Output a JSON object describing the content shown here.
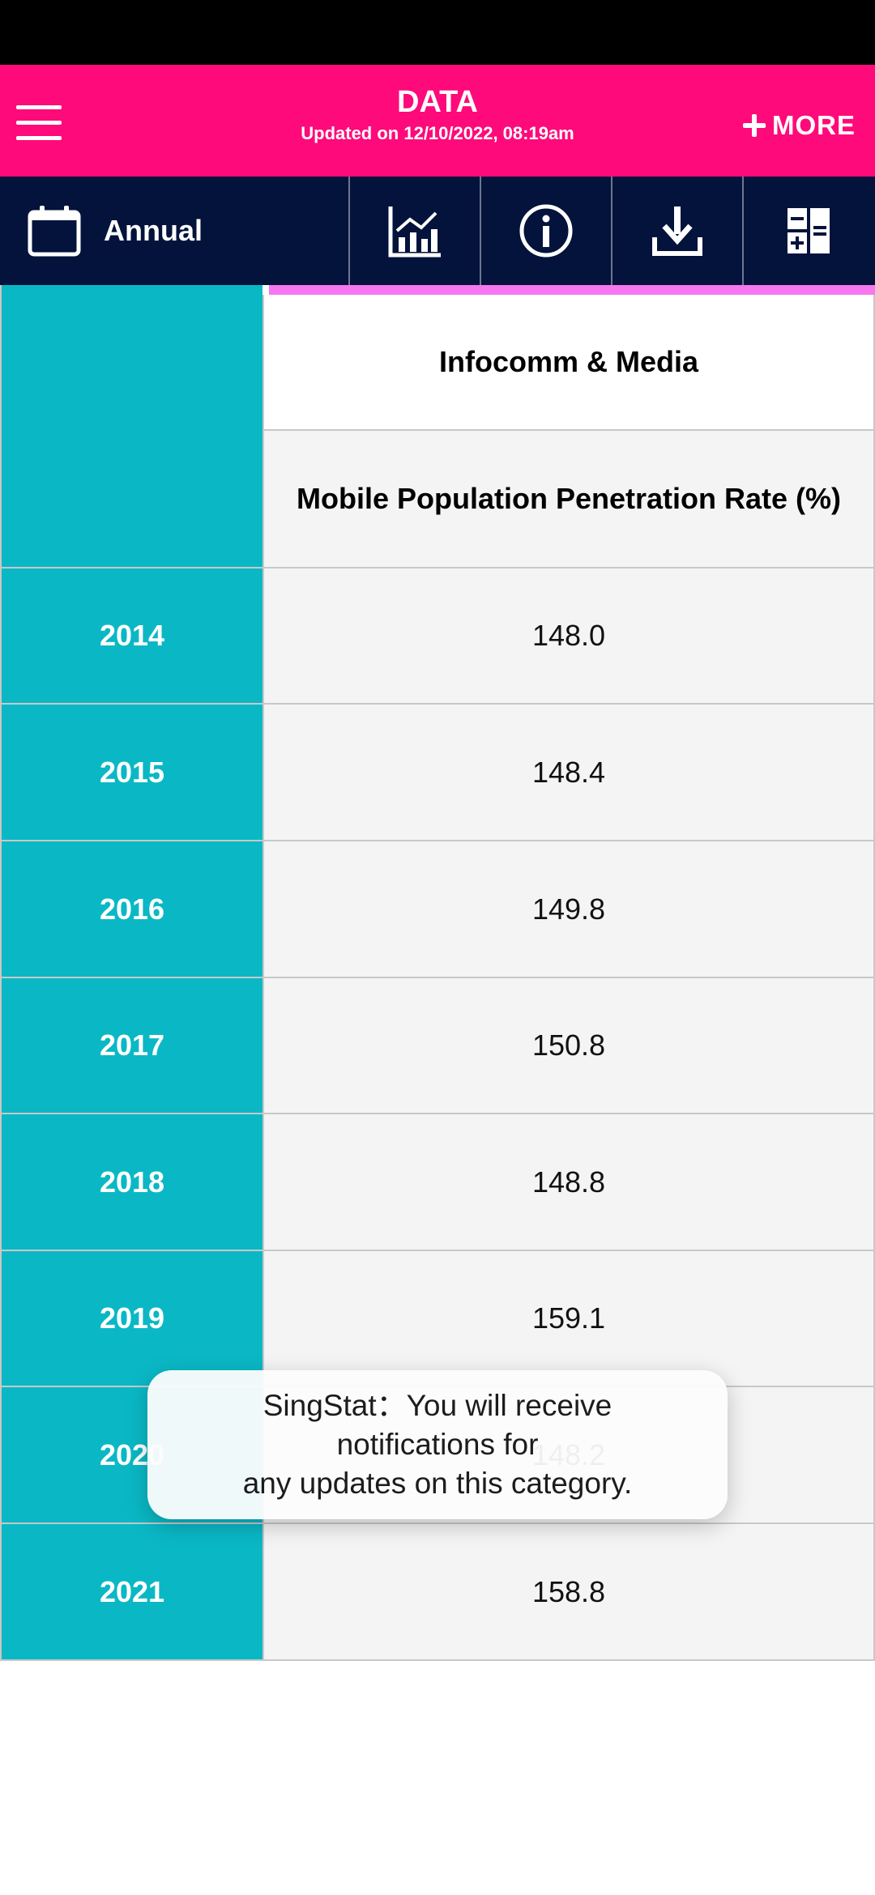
{
  "header": {
    "title": "DATA",
    "subtitle": "Updated on 12/10/2022, 08:19am",
    "more_label": "MORE"
  },
  "toolbar": {
    "frequency_label": "Annual",
    "icons": [
      "chart-icon",
      "info-icon",
      "download-icon",
      "calculator-icon"
    ]
  },
  "table": {
    "category": "Infocomm & Media",
    "indicator": "Mobile Population Penetration Rate (%)",
    "rows": [
      {
        "year": "2014",
        "value": "148.0"
      },
      {
        "year": "2015",
        "value": "148.4"
      },
      {
        "year": "2016",
        "value": "149.8"
      },
      {
        "year": "2017",
        "value": "150.8"
      },
      {
        "year": "2018",
        "value": "148.8"
      },
      {
        "year": "2019",
        "value": "159.1"
      },
      {
        "year": "2020",
        "value": "148.2"
      },
      {
        "year": "2021",
        "value": "158.8"
      }
    ]
  },
  "toast": {
    "message": "SingStat：You will receive\nnotifications for\nany updates on this category."
  },
  "colors": {
    "header_bg": "#ff0a7a",
    "toolbar_bg": "#03133b",
    "year_column": "#0ab8c5",
    "accent": "#f777ef"
  }
}
